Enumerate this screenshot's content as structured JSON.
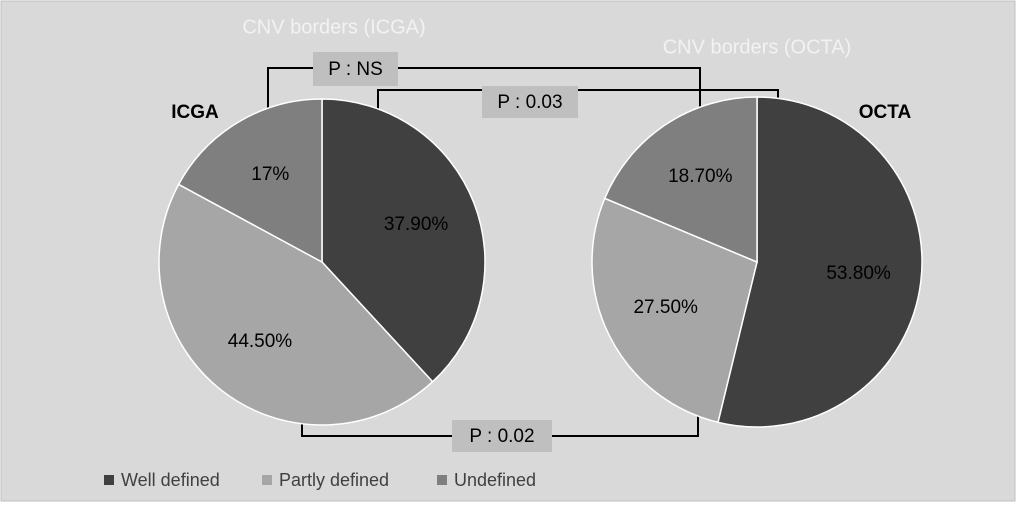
{
  "chart_data": [
    {
      "type": "pie",
      "title": "CNV borders (ICGA)",
      "label": "ICGA",
      "categories": [
        "Well defined",
        "Partly defined",
        "Undefined"
      ],
      "values": [
        37.9,
        44.5,
        17
      ],
      "value_labels": [
        "37.90%",
        "44.50%",
        "17%"
      ],
      "colors": [
        "#404040",
        "#a6a6a6",
        "#7f7f7f"
      ]
    },
    {
      "type": "pie",
      "title": "CNV borders (OCTA)",
      "label": "OCTA",
      "categories": [
        "Well defined",
        "Partly defined",
        "Undefined"
      ],
      "values": [
        53.8,
        27.5,
        18.7
      ],
      "value_labels": [
        "53.80%",
        "27.50%",
        "18.70%"
      ],
      "colors": [
        "#404040",
        "#a6a6a6",
        "#7f7f7f"
      ]
    }
  ],
  "annotations": [
    "P : NS",
    "P : 0.03",
    "P : 0.02"
  ]
}
